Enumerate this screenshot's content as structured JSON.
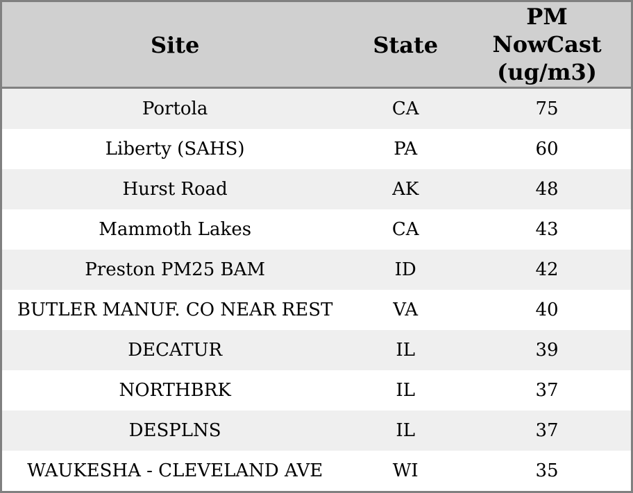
{
  "chart_data": {
    "type": "table",
    "columns": [
      "Site",
      "State",
      "PM NowCast (ug/m3)"
    ],
    "rows": [
      [
        "Portola",
        "CA",
        75
      ],
      [
        "Liberty (SAHS)",
        "PA",
        60
      ],
      [
        "Hurst Road",
        "AK",
        48
      ],
      [
        "Mammoth Lakes",
        "CA",
        43
      ],
      [
        "Preston PM25 BAM",
        "ID",
        42
      ],
      [
        "BUTLER MANUF. CO NEAR REST",
        "VA",
        40
      ],
      [
        "DECATUR",
        "IL",
        39
      ],
      [
        "NORTHBRK",
        "IL",
        37
      ],
      [
        "DESPLNS",
        "IL",
        37
      ],
      [
        "WAUKESHA - CLEVELAND AVE",
        "WI",
        35
      ]
    ]
  },
  "colors": {
    "header_bg": "#d0d0d0",
    "row_bg": "#ffffff",
    "row_alt_bg": "#efefef",
    "border": "#808080",
    "text": "#000000"
  }
}
